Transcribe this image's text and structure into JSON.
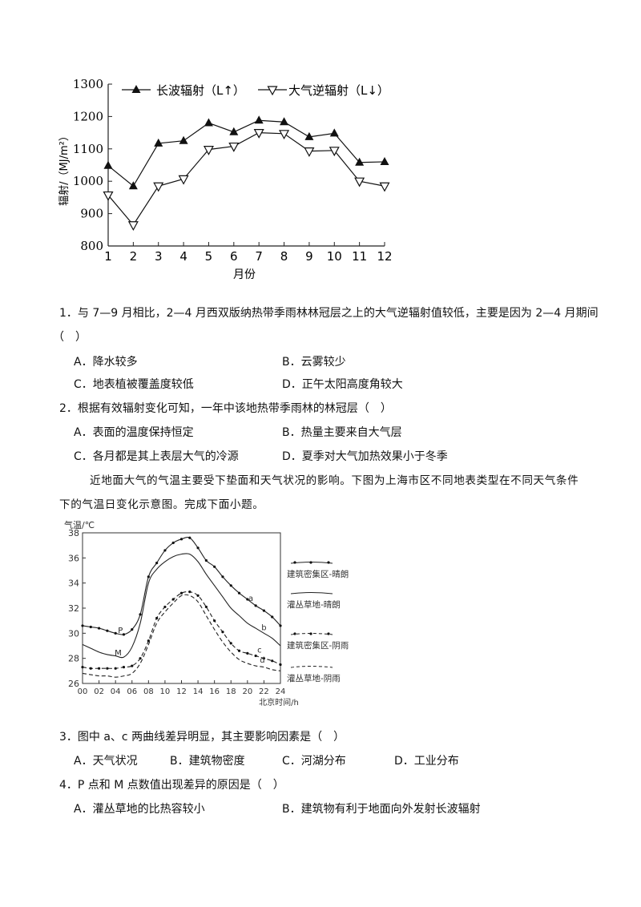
{
  "chart1": {
    "chart_data": {
      "type": "line",
      "x": [
        1,
        2,
        3,
        4,
        5,
        6,
        7,
        8,
        9,
        10,
        11,
        12
      ],
      "xlabel": "月份",
      "ylabel": "辐射/（MJ/m²）",
      "ylim": [
        800,
        1300
      ],
      "yticks": [
        800,
        900,
        1000,
        1100,
        1200,
        1300
      ],
      "legend_position": "top",
      "series": [
        {
          "name": "长波辐射（L↑）",
          "marker": "filled-triangle",
          "values": [
            1048,
            985,
            1117,
            1125,
            1180,
            1152,
            1188,
            1183,
            1137,
            1148,
            1058,
            1060
          ]
        },
        {
          "name": "大气逆辐射（L↓）",
          "marker": "open-down-triangle",
          "values": [
            957,
            865,
            985,
            1007,
            1098,
            1108,
            1150,
            1147,
            1093,
            1095,
            1000,
            985
          ]
        }
      ]
    }
  },
  "q1": {
    "stem": "1．与 7—9 月相比，2—4 月西双版纳热带季雨林林冠层之上的大气逆辐射值较低，主要是因为 2—4 月期间",
    "bracket": "（　）",
    "options": [
      "A．降水较多",
      "B．云雾较少",
      "C．地表植被覆盖度较低",
      "D．正午太阳高度角较大"
    ]
  },
  "q2": {
    "stem": "2．根据有效辐射变化可知，一年中该地热带季雨林的林冠层（　）",
    "options": [
      "A．表面的温度保持恒定",
      "B．热量主要来自大气层",
      "C．各月都是其上表层大气的冷源",
      "D．夏季对大气加热效果小于冬季"
    ]
  },
  "intro": {
    "line1": "近地面大气的气温主要受下垫面和天气状况的影响。下图为上海市区不同地表类型在不同天气条件",
    "line2": "下的气温日变化示意图。完成下面小题。"
  },
  "chart2": {
    "chart_data": {
      "type": "line",
      "ylabel": "气温/℃",
      "xlabel": "北京时间/h",
      "ylim": [
        26,
        38
      ],
      "yticks": [
        26,
        28,
        30,
        32,
        34,
        36,
        38
      ],
      "xticks": [
        "00",
        "02",
        "04",
        "06",
        "08",
        "10",
        "12",
        "14",
        "16",
        "18",
        "20",
        "22",
        "24"
      ],
      "legend_position": "right",
      "x": [
        0,
        1,
        2,
        3,
        4,
        5,
        6,
        7,
        8,
        9,
        10,
        11,
        12,
        13,
        14,
        15,
        16,
        17,
        18,
        19,
        20,
        21,
        22,
        23,
        24
      ],
      "series": [
        {
          "name": "建筑密集区-晴朗",
          "label": "a",
          "style": "solid-dots",
          "values": [
            30.6,
            30.5,
            30.4,
            30.2,
            30.0,
            29.9,
            30.3,
            31.5,
            34.5,
            35.6,
            36.6,
            37.2,
            37.5,
            37.6,
            36.8,
            35.8,
            35.3,
            34.5,
            33.8,
            33.2,
            32.7,
            32.2,
            31.8,
            31.3,
            30.6
          ]
        },
        {
          "name": "灌丛草地-晴朗",
          "label": "b",
          "style": "solid",
          "values": [
            29.1,
            28.8,
            28.5,
            28.3,
            28.2,
            28.1,
            28.9,
            30.8,
            34.0,
            35.1,
            35.7,
            36.1,
            36.3,
            36.3,
            35.7,
            34.7,
            33.8,
            32.9,
            32.0,
            31.4,
            30.8,
            30.4,
            30.0,
            29.6,
            29.0
          ]
        },
        {
          "name": "建筑密集区-阴雨",
          "label": "c",
          "style": "dashed-dots",
          "values": [
            27.3,
            27.2,
            27.2,
            27.2,
            27.2,
            27.3,
            27.4,
            28.0,
            29.4,
            31.2,
            32.1,
            32.7,
            33.2,
            33.3,
            33.0,
            32.1,
            31.0,
            30.1,
            29.2,
            28.6,
            28.4,
            28.2,
            28.0,
            27.8,
            27.5
          ]
        },
        {
          "name": "灌丛草地-阴雨",
          "label": "d",
          "style": "dashed",
          "values": [
            26.8,
            26.7,
            26.6,
            26.6,
            26.5,
            26.6,
            26.8,
            27.6,
            29.1,
            30.8,
            31.7,
            32.4,
            33.0,
            33.0,
            32.5,
            31.4,
            30.3,
            29.3,
            28.5,
            27.9,
            27.6,
            27.4,
            27.3,
            27.1,
            27.0
          ]
        }
      ],
      "annotations": [
        {
          "text": "P",
          "x": 5
        },
        {
          "text": "M",
          "x": 5
        }
      ]
    }
  },
  "q3": {
    "stem": "3．图中 a、c 两曲线差异明显，其主要影响因素是（　）",
    "options": [
      "A．天气状况",
      "B．建筑物密度",
      "C．河湖分布",
      "D．工业分布"
    ]
  },
  "q4": {
    "stem": "4．P 点和 M 点数值出现差异的原因是（　）",
    "options": [
      "A．灌丛草地的比热容较小",
      "B．建筑物有利于地面向外发射长波辐射"
    ]
  }
}
